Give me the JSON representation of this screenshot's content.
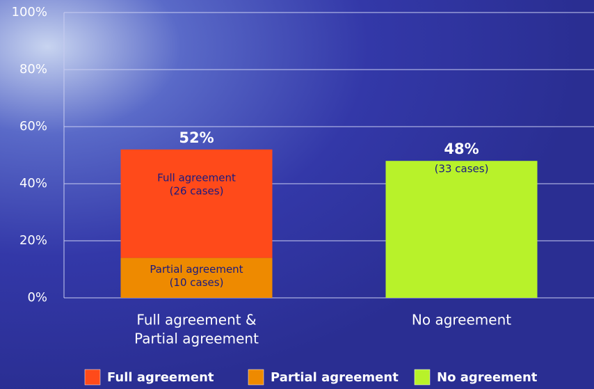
{
  "chart_data": {
    "type": "stacked_bar",
    "categories": [
      [
        "Full agreement &",
        "Partial agreement"
      ],
      [
        "No agreement"
      ]
    ],
    "series": [
      {
        "name": "Full agreement",
        "color": "#ff4a1a",
        "values": [
          38,
          null
        ],
        "segment_texts": [
          [
            "Full agreement",
            "(26 cases)"
          ],
          null
        ]
      },
      {
        "name": "Partial agreement",
        "color": "#ee8a00",
        "values": [
          14,
          null
        ],
        "segment_texts": [
          [
            "Partial agreement",
            "(10 cases)"
          ],
          null
        ]
      },
      {
        "name": "No agreement",
        "color": "#b8f22a",
        "values": [
          null,
          48
        ],
        "segment_texts": [
          null,
          [
            "(33 cases)"
          ]
        ]
      }
    ],
    "total_labels": [
      "52%",
      "48%"
    ],
    "ylim": [
      0,
      100
    ],
    "yticks": [
      {
        "value": 0,
        "label": "0%"
      },
      {
        "value": 20,
        "label": "20%"
      },
      {
        "value": 40,
        "label": "40%"
      },
      {
        "value": 60,
        "label": "60%"
      },
      {
        "value": 80,
        "label": "80%"
      },
      {
        "value": 100,
        "label": "100%"
      }
    ],
    "grid": true,
    "legend": "bottom"
  }
}
